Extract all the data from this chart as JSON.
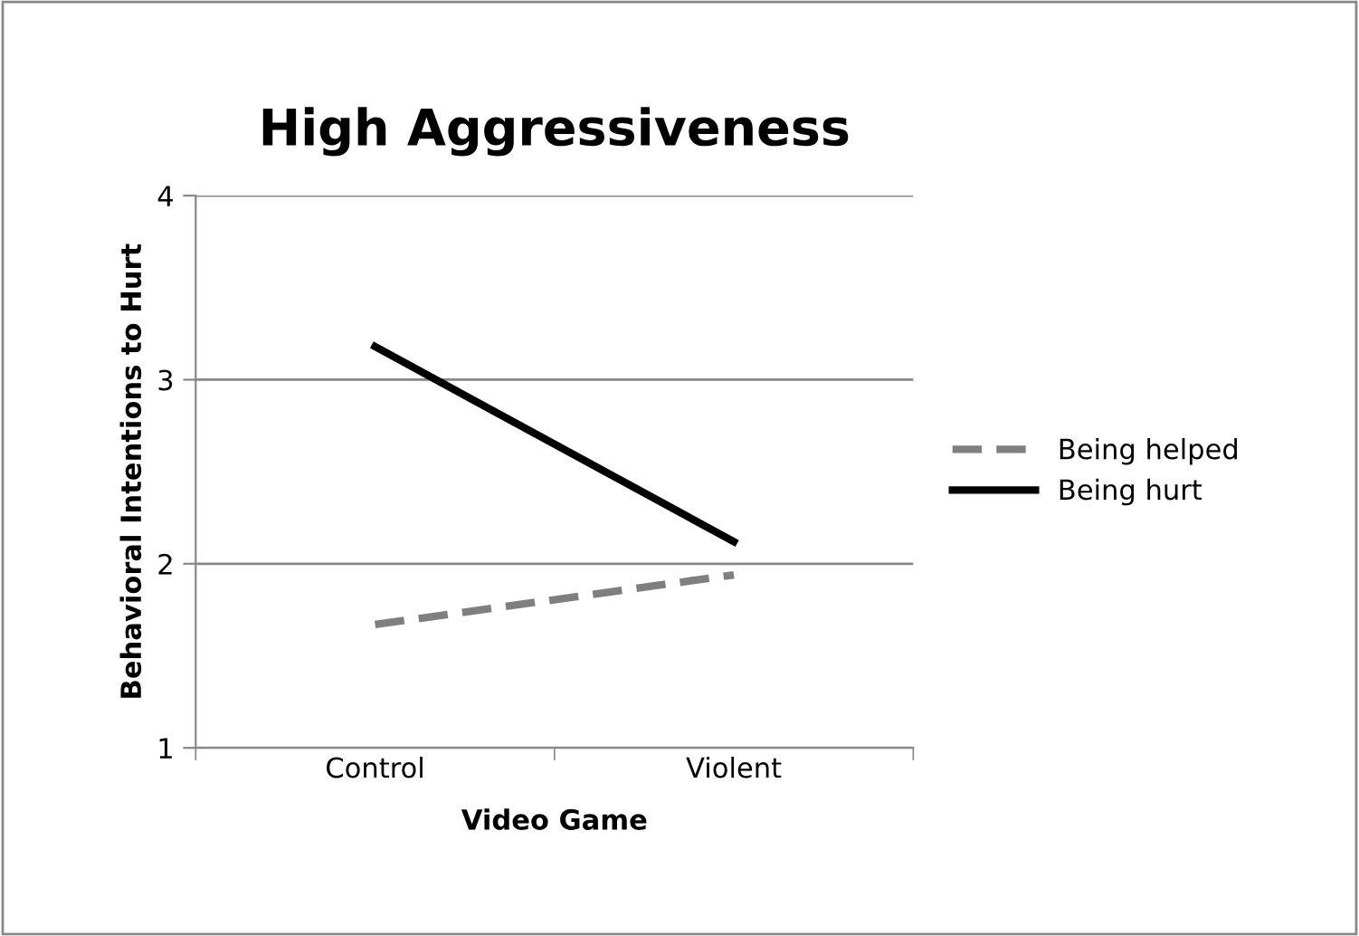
{
  "chart_data": {
    "type": "line",
    "title": "High Aggressiveness",
    "xlabel": "Video Game",
    "ylabel": "Behavioral Intentions to Hurt",
    "categories": [
      "Control",
      "Violent"
    ],
    "series": [
      {
        "name": "Being helped",
        "color": "#7f7f7f",
        "values": [
          1.67,
          1.94
        ],
        "line_style": "dashed"
      },
      {
        "name": "Being hurt",
        "color": "#000000",
        "values": [
          3.18,
          2.12
        ],
        "line_style": "solid"
      }
    ],
    "ylim": [
      1,
      4
    ],
    "yticks": [
      1,
      2,
      3,
      4
    ],
    "grid": "y",
    "legend": "right",
    "marker": "none"
  }
}
